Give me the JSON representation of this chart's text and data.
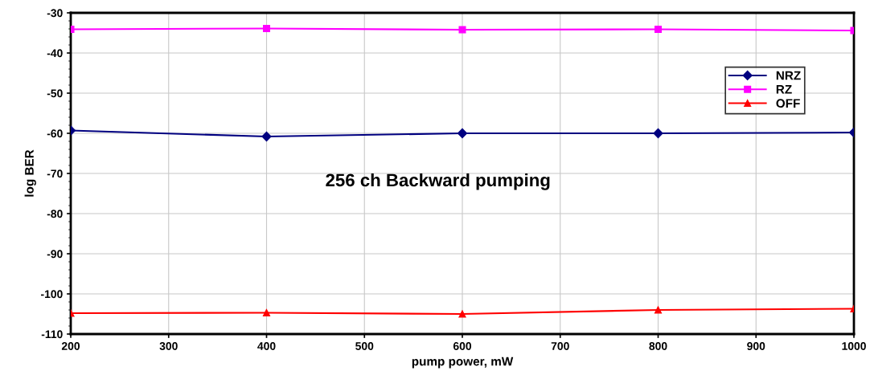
{
  "chart_data": {
    "type": "line",
    "xlabel": "pump power, mW",
    "ylabel": "log BER",
    "x": [
      200,
      400,
      600,
      800,
      1000
    ],
    "series": [
      {
        "name": "NRZ",
        "color": "#000080",
        "values": [
          -59.3,
          -60.8,
          -60.0,
          -60.0,
          -59.8
        ],
        "marker": "diamond"
      },
      {
        "name": "RZ",
        "color": "#ff00ff",
        "values": [
          -34.1,
          -33.9,
          -34.2,
          -34.1,
          -34.4
        ],
        "marker": "square"
      },
      {
        "name": "OFF",
        "color": "#ff0000",
        "values": [
          -104.8,
          -104.7,
          -105.0,
          -104.0,
          -103.7
        ],
        "marker": "triangle"
      }
    ],
    "annotations": [
      "256 ch Backward pumping"
    ],
    "xlim": [
      200,
      1000
    ],
    "xticks": [
      200,
      300,
      400,
      500,
      600,
      700,
      800,
      900,
      1000
    ],
    "ylim": [
      -110,
      -30
    ],
    "yticks": [
      -110,
      -100,
      -90,
      -80,
      -70,
      -60,
      -50,
      -40,
      -30
    ],
    "grid": true,
    "legend": "top right",
    "line_style": "solid"
  }
}
